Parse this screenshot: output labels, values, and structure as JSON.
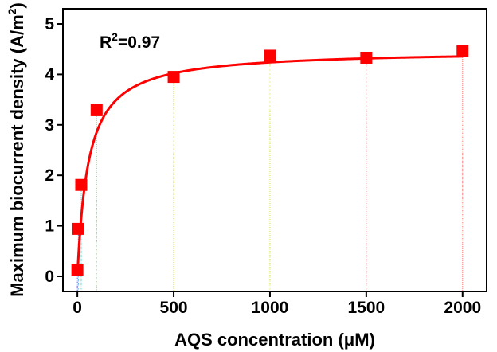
{
  "chart_data": {
    "type": "scatter",
    "xlabel": "AQS concentration (μM)",
    "ylabel_main": "Maximum biocurrent density (A/m",
    "ylabel_sup": "2",
    "ylabel_close": ")",
    "annotation": {
      "prefix": "R",
      "sup": "2",
      "rest": "=0.97"
    },
    "xlim": [
      -75,
      2125
    ],
    "ylim": [
      -0.3,
      5.3
    ],
    "x_ticks": [
      0,
      500,
      1000,
      1500,
      2000
    ],
    "y_ticks": [
      0,
      1,
      2,
      3,
      4,
      5
    ],
    "grid": false,
    "series": [
      {
        "x": [
          0,
          5,
          20,
          100,
          500,
          1000,
          1500,
          2000
        ],
        "y": [
          0.13,
          0.94,
          1.81,
          3.29,
          3.95,
          4.37,
          4.33,
          4.46
        ]
      }
    ],
    "fit": {
      "model": "michaelis-menten",
      "vmax": 4.48,
      "k": 57
    },
    "colors": {
      "marker": "#ff0000",
      "fit_line": "#ff0000",
      "drop_lines": [
        "#2222ff",
        "#3399ff",
        "#33cccc",
        "#66dd66",
        "#bbcc22",
        "#dddd33",
        "#ff7777",
        "#ff5555"
      ]
    }
  }
}
